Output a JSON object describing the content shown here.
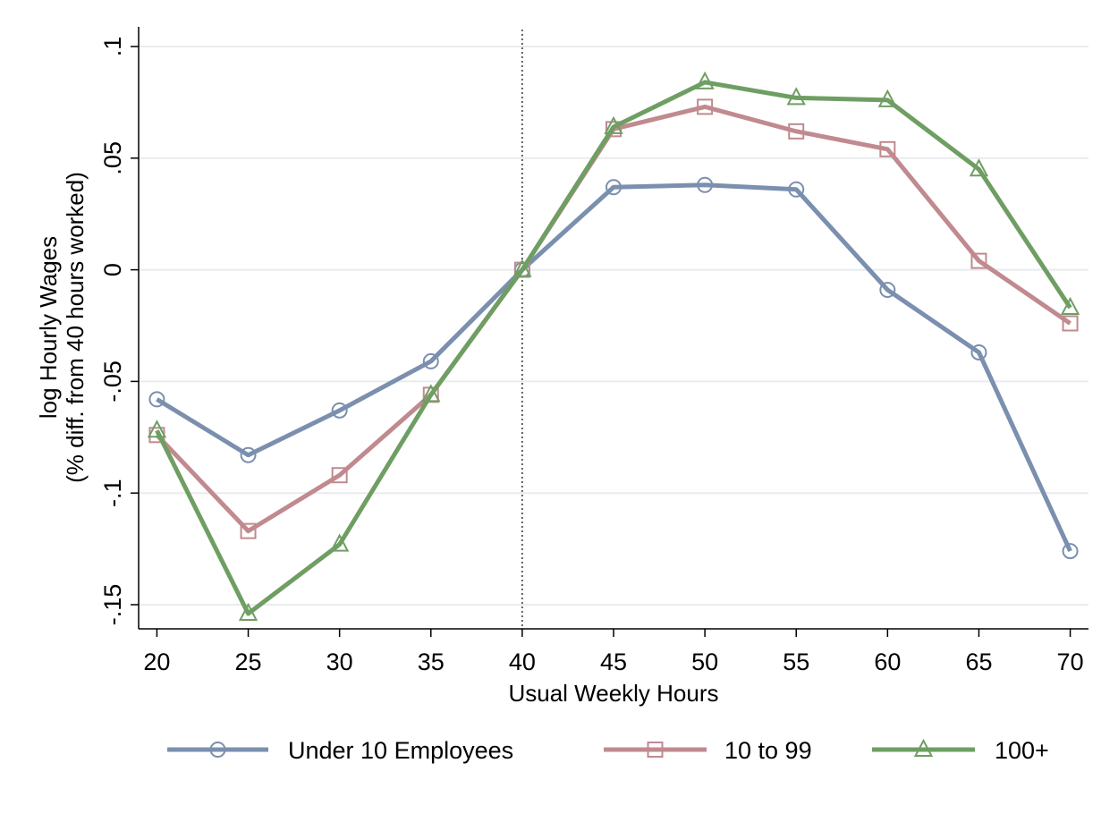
{
  "chart_data": {
    "type": "line",
    "title": "",
    "xlabel": "Usual Weekly Hours",
    "ylabel_line1": "log Hourly Wages",
    "ylabel_line2": "(% diff. from 40 hours worked)",
    "x": [
      20,
      25,
      30,
      35,
      40,
      45,
      50,
      55,
      60,
      65,
      70
    ],
    "x_tick_labels": [
      "20",
      "25",
      "30",
      "35",
      "40",
      "45",
      "50",
      "55",
      "60",
      "65",
      "70"
    ],
    "y_ticks": [
      0.1,
      0.05,
      0,
      -0.05,
      -0.1,
      -0.15
    ],
    "y_tick_labels": [
      ".1",
      ".05",
      "0",
      "-.05",
      "-.1",
      "-.15"
    ],
    "xlim": [
      19,
      71
    ],
    "ylim": [
      -0.162,
      0.1
    ],
    "grid": true,
    "reference_line_x": 40,
    "legend_position": "bottom",
    "series": [
      {
        "name": "Under 10 Employees",
        "marker": "circle",
        "color": "#7b8fae",
        "values": [
          -0.058,
          -0.083,
          -0.063,
          -0.041,
          0.0,
          0.037,
          0.038,
          0.036,
          -0.009,
          -0.037,
          -0.126
        ]
      },
      {
        "name": "10 to 99",
        "marker": "square",
        "color": "#c08a8f",
        "values": [
          -0.074,
          -0.117,
          -0.092,
          -0.056,
          0.0,
          0.063,
          0.073,
          0.062,
          0.054,
          0.004,
          -0.024
        ]
      },
      {
        "name": "100+",
        "marker": "triangle",
        "color": "#6f9e63",
        "values": [
          -0.072,
          -0.154,
          -0.123,
          -0.056,
          0.0,
          0.064,
          0.084,
          0.077,
          0.076,
          0.045,
          -0.017
        ]
      }
    ]
  }
}
